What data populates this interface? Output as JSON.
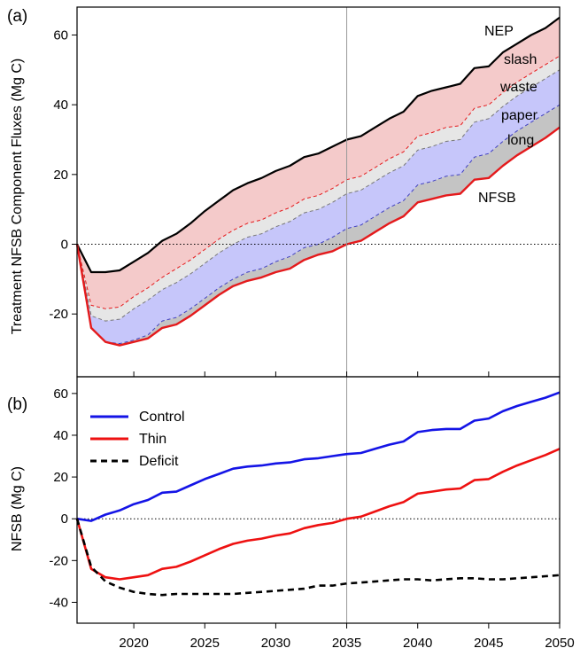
{
  "chart_data": [
    {
      "panel": "(a)",
      "type": "area",
      "ylabel": "Treatment NFSB Component Fluxes (Mg C)",
      "xlim": [
        2016,
        2050
      ],
      "ylim": [
        -38,
        68
      ],
      "yticks": [
        -20,
        0,
        20,
        40,
        60
      ],
      "grid": false,
      "x": [
        2016,
        2017,
        2018,
        2019,
        2020,
        2021,
        2022,
        2023,
        2024,
        2025,
        2026,
        2027,
        2028,
        2029,
        2030,
        2031,
        2032,
        2033,
        2034,
        2035,
        2036,
        2037,
        2038,
        2039,
        2040,
        2041,
        2042,
        2043,
        2044,
        2045,
        2046,
        2047,
        2048,
        2049,
        2050
      ],
      "boundaries": {
        "NEP": [
          0,
          -8,
          -8,
          -7.5,
          -5,
          -2.5,
          1,
          3,
          6,
          9.5,
          12.5,
          15.5,
          17.5,
          19,
          21,
          22.5,
          25,
          26,
          28,
          30,
          31,
          33.5,
          36,
          38,
          42.5,
          44,
          45,
          46,
          50.5,
          51,
          55,
          57.5,
          60,
          62,
          65
        ],
        "slash": [
          0,
          -17.5,
          -18.5,
          -18,
          -15,
          -12.5,
          -9.5,
          -7,
          -4.5,
          -1.5,
          1.5,
          4,
          6,
          7,
          9,
          10.5,
          13,
          14,
          16,
          18.5,
          19.5,
          22,
          24.5,
          26.5,
          31,
          32,
          33.5,
          34,
          39,
          40,
          43.5,
          46.5,
          49,
          51.5,
          54
        ],
        "waste": [
          0,
          -20.5,
          -22,
          -21.5,
          -18.5,
          -16,
          -13,
          -11,
          -8.5,
          -5.5,
          -2.5,
          0,
          2,
          3,
          5,
          6.5,
          9,
          10,
          12,
          14.5,
          15.5,
          18,
          20.5,
          22.5,
          27,
          28,
          29.5,
          30,
          35,
          36,
          39.5,
          42.5,
          45,
          47.5,
          50
        ],
        "paper": [
          0,
          -24,
          -28,
          -28.5,
          -27.5,
          -26,
          -22,
          -21,
          -18.5,
          -15.5,
          -12.5,
          -10,
          -8,
          -7,
          -5,
          -3.5,
          -1,
          0,
          2,
          4.5,
          5.5,
          8,
          10.5,
          12.5,
          17,
          18,
          19.5,
          20,
          25,
          26,
          29.5,
          32.5,
          35,
          37.5,
          40
        ],
        "long": [
          0,
          -24,
          -28,
          -29,
          -28,
          -27,
          -24,
          -23,
          -20.5,
          -17.5,
          -14.5,
          -12,
          -10.5,
          -9.5,
          -8,
          -7,
          -4.5,
          -3,
          -2,
          0,
          1,
          3.5,
          6,
          8,
          12,
          13,
          14,
          14.5,
          18.5,
          19,
          22.5,
          25.5,
          28,
          30.5,
          33.5
        ]
      },
      "bands": [
        {
          "name": "slash",
          "upper": "NEP",
          "lower": "slash",
          "color": "#f4caca"
        },
        {
          "name": "waste",
          "upper": "slash",
          "lower": "waste",
          "color": "#e6e6e6"
        },
        {
          "name": "paper",
          "upper": "waste",
          "lower": "paper",
          "color": "#c6c6fa"
        },
        {
          "name": "long",
          "upper": "paper",
          "lower": "long",
          "color": "#c4c4c4"
        }
      ],
      "labels": [
        "NEP",
        "slash",
        "waste",
        "paper",
        "long",
        "NFSB"
      ],
      "colors": {
        "nep": "#000000",
        "nfsb": "#e41a1c",
        "dash_red": "#e41a1c",
        "dash_gray": "#777777",
        "dash_blue": "#4040c0"
      }
    },
    {
      "panel": "(b)",
      "type": "line",
      "ylabel": "NFSB (Mg C)",
      "xlim": [
        2016,
        2050
      ],
      "ylim": [
        -50,
        68
      ],
      "yticks": [
        -40,
        -20,
        0,
        20,
        40,
        60
      ],
      "xticks": [
        2020,
        2025,
        2030,
        2035,
        2040,
        2045,
        2050
      ],
      "grid": false,
      "legend": "top-left",
      "x": [
        2016,
        2017,
        2018,
        2019,
        2020,
        2021,
        2022,
        2023,
        2024,
        2025,
        2026,
        2027,
        2028,
        2029,
        2030,
        2031,
        2032,
        2033,
        2034,
        2035,
        2036,
        2037,
        2038,
        2039,
        2040,
        2041,
        2042,
        2043,
        2044,
        2045,
        2046,
        2047,
        2048,
        2049,
        2050
      ],
      "series": [
        {
          "name": "Control",
          "color": "#1414e6",
          "style": "solid",
          "values": [
            0,
            -1,
            2,
            4,
            7,
            9,
            12.5,
            13,
            16,
            19,
            21.5,
            24,
            25,
            25.5,
            26.5,
            27,
            28.5,
            29,
            30,
            31,
            31.5,
            33.5,
            35.5,
            37,
            41.5,
            42.5,
            43,
            43,
            47,
            48,
            51.5,
            54,
            56,
            58,
            60.5
          ]
        },
        {
          "name": "Thin",
          "color": "#ee1111",
          "style": "solid",
          "values": [
            0,
            -24,
            -28,
            -29,
            -28,
            -27,
            -24,
            -23,
            -20.5,
            -17.5,
            -14.5,
            -12,
            -10.5,
            -9.5,
            -8,
            -7,
            -4.5,
            -3,
            -2,
            0,
            1,
            3.5,
            6,
            8,
            12,
            13,
            14,
            14.5,
            18.5,
            19,
            22.5,
            25.5,
            28,
            30.5,
            33.5
          ]
        },
        {
          "name": "Deficit",
          "color": "#000000",
          "style": "dashed",
          "values": [
            0,
            -23,
            -30,
            -33,
            -35,
            -36,
            -36.5,
            -36,
            -36,
            -36,
            -36,
            -36,
            -35.5,
            -35,
            -34.5,
            -34,
            -33.5,
            -32,
            -32,
            -31,
            -30.5,
            -30,
            -29.5,
            -29,
            -29,
            -29.5,
            -29,
            -28.5,
            -28.5,
            -29,
            -29,
            -28.5,
            -28,
            -27.5,
            -27
          ]
        }
      ]
    }
  ]
}
